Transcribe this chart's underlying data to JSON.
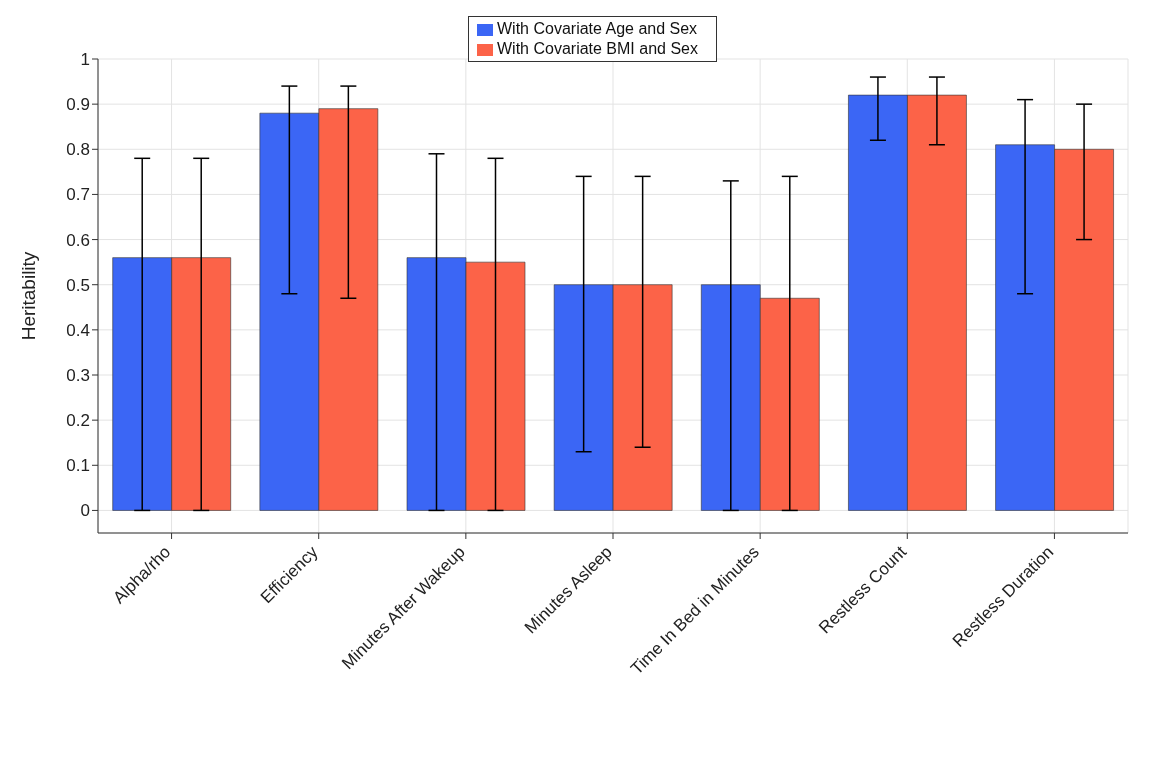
{
  "chart_data": {
    "type": "bar",
    "ylabel": "Heritability",
    "categories": [
      "Alpha/rho",
      "Efficiency",
      "Minutes After Wakeup",
      "Minutes Asleep",
      "Time In Bed in Minutes",
      "Restless Count",
      "Restless Duration"
    ],
    "series": [
      {
        "name": "With Covariate Age and Sex",
        "color": "#3b66f5",
        "values": [
          0.56,
          0.88,
          0.56,
          0.5,
          0.5,
          0.92,
          0.81
        ],
        "errors": [
          [
            0,
            0.78
          ],
          [
            0.48,
            0.94
          ],
          [
            0,
            0.79
          ],
          [
            0.13,
            0.74
          ],
          [
            0,
            0.73
          ],
          [
            0.82,
            0.96
          ],
          [
            0.48,
            0.91
          ]
        ]
      },
      {
        "name": "With Covariate BMI and Sex",
        "color": "#fc6348",
        "values": [
          0.56,
          0.89,
          0.55,
          0.5,
          0.47,
          0.92,
          0.8
        ],
        "errors": [
          [
            0,
            0.78
          ],
          [
            0.47,
            0.94
          ],
          [
            0,
            0.78
          ],
          [
            0.14,
            0.74
          ],
          [
            0,
            0.74
          ],
          [
            0.81,
            0.96
          ],
          [
            0.6,
            0.9
          ]
        ]
      }
    ],
    "ylim": [
      -0.05,
      1
    ],
    "yticks": [
      0,
      0.1,
      0.2,
      0.3,
      0.4,
      0.5,
      0.6,
      0.7,
      0.8,
      0.9,
      1
    ],
    "grid": true,
    "legend": "top"
  }
}
